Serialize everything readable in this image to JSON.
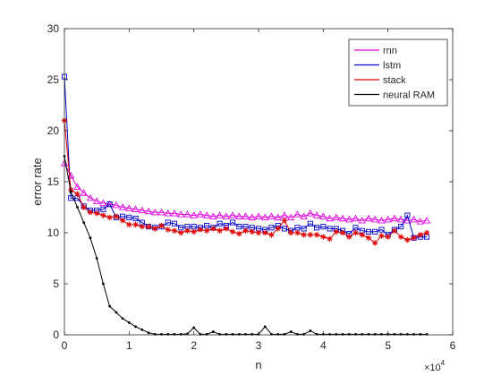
{
  "chart_data": {
    "type": "line",
    "xlabel": "n",
    "ylabel": "error rate",
    "x_exponent_label": "×10",
    "x_exponent_power": "4",
    "xlim": [
      0,
      6
    ],
    "ylim": [
      0,
      30
    ],
    "xticks": [
      0,
      1,
      2,
      3,
      4,
      5,
      6
    ],
    "yticks": [
      0,
      5,
      10,
      15,
      20,
      25,
      30
    ],
    "xtick_labels": [
      "0",
      "1",
      "2",
      "3",
      "4",
      "5",
      "6"
    ],
    "ytick_labels": [
      "0",
      "5",
      "10",
      "15",
      "20",
      "25",
      "30"
    ],
    "legend_position": "top-right",
    "series": [
      {
        "name": "rnn",
        "color": "#e000e0",
        "marker": "triangle",
        "x": [
          0,
          0.1,
          0.2,
          0.3,
          0.4,
          0.5,
          0.6,
          0.7,
          0.8,
          0.9,
          1.0,
          1.1,
          1.2,
          1.3,
          1.4,
          1.5,
          1.6,
          1.7,
          1.8,
          1.9,
          2.0,
          2.1,
          2.2,
          2.3,
          2.4,
          2.5,
          2.6,
          2.7,
          2.8,
          2.9,
          3.0,
          3.1,
          3.2,
          3.3,
          3.4,
          3.5,
          3.6,
          3.7,
          3.8,
          3.9,
          4.0,
          4.1,
          4.2,
          4.3,
          4.4,
          4.5,
          4.6,
          4.7,
          4.8,
          4.9,
          5.0,
          5.1,
          5.2,
          5.3,
          5.4,
          5.5,
          5.6
        ],
        "y": [
          16.8,
          15.6,
          14.5,
          13.9,
          13.4,
          13.1,
          12.9,
          12.8,
          12.7,
          12.5,
          12.4,
          12.3,
          12.2,
          12.1,
          12.0,
          12.0,
          11.9,
          11.9,
          11.8,
          11.8,
          11.7,
          11.8,
          11.7,
          11.6,
          11.7,
          11.6,
          11.7,
          11.6,
          11.6,
          11.5,
          11.6,
          11.5,
          11.6,
          11.5,
          11.7,
          11.5,
          11.8,
          11.6,
          11.9,
          11.7,
          11.6,
          11.4,
          11.5,
          11.4,
          11.3,
          11.4,
          11.2,
          11.4,
          11.3,
          11.2,
          11.3,
          11.4,
          11.3,
          11.2,
          11.3,
          11.1,
          11.2
        ]
      },
      {
        "name": "lstm",
        "color": "#0000c8",
        "marker": "square",
        "x": [
          0,
          0.1,
          0.2,
          0.3,
          0.4,
          0.5,
          0.6,
          0.7,
          0.8,
          0.9,
          1.0,
          1.1,
          1.2,
          1.3,
          1.4,
          1.5,
          1.6,
          1.7,
          1.8,
          1.9,
          2.0,
          2.1,
          2.2,
          2.3,
          2.4,
          2.5,
          2.6,
          2.7,
          2.8,
          2.9,
          3.0,
          3.1,
          3.2,
          3.3,
          3.4,
          3.5,
          3.6,
          3.7,
          3.8,
          3.9,
          4.0,
          4.1,
          4.2,
          4.3,
          4.4,
          4.5,
          4.6,
          4.7,
          4.8,
          4.9,
          5.0,
          5.1,
          5.2,
          5.3,
          5.4,
          5.5,
          5.6
        ],
        "y": [
          25.3,
          13.4,
          13.4,
          12.6,
          12.2,
          12.2,
          12.3,
          12.8,
          11.5,
          11.6,
          11.5,
          11.4,
          11.0,
          10.6,
          10.5,
          10.6,
          11.0,
          10.9,
          10.5,
          10.6,
          10.6,
          10.5,
          10.7,
          10.5,
          10.9,
          10.7,
          11.0,
          10.6,
          10.6,
          10.5,
          10.4,
          10.3,
          10.5,
          10.7,
          10.4,
          10.2,
          10.5,
          10.4,
          10.9,
          10.5,
          10.6,
          10.4,
          10.4,
          10.2,
          9.9,
          10.5,
          10.2,
          10.1,
          10.1,
          10.3,
          9.8,
          10.3,
          10.6,
          11.7,
          9.5,
          9.6,
          9.6
        ]
      },
      {
        "name": "stack",
        "color": "#e00000",
        "marker": "asterisk",
        "x": [
          0,
          0.1,
          0.2,
          0.3,
          0.4,
          0.5,
          0.6,
          0.7,
          0.8,
          0.9,
          1.0,
          1.1,
          1.2,
          1.3,
          1.4,
          1.5,
          1.6,
          1.7,
          1.8,
          1.9,
          2.0,
          2.1,
          2.2,
          2.3,
          2.4,
          2.5,
          2.6,
          2.7,
          2.8,
          2.9,
          3.0,
          3.1,
          3.2,
          3.3,
          3.4,
          3.5,
          3.6,
          3.7,
          3.8,
          3.9,
          4.0,
          4.1,
          4.2,
          4.3,
          4.4,
          4.5,
          4.6,
          4.7,
          4.8,
          4.9,
          5.0,
          5.1,
          5.2,
          5.3,
          5.4,
          5.5,
          5.6
        ],
        "y": [
          21.0,
          14.2,
          13.8,
          12.5,
          12.0,
          11.9,
          11.7,
          11.5,
          11.6,
          11.2,
          10.8,
          10.8,
          10.6,
          10.6,
          10.4,
          10.7,
          10.3,
          10.2,
          10.0,
          10.2,
          10.1,
          10.3,
          10.2,
          10.4,
          10.2,
          10.4,
          10.1,
          9.9,
          10.2,
          10.1,
          10.0,
          10.0,
          9.8,
          10.4,
          11.2,
          10.0,
          10.0,
          9.8,
          9.8,
          9.8,
          9.6,
          9.4,
          10.1,
          10.0,
          9.6,
          10.0,
          9.8,
          9.5,
          9.0,
          9.7,
          9.6,
          10.2,
          9.6,
          9.3,
          9.5,
          9.8,
          10.0
        ]
      },
      {
        "name": "neural RAM",
        "color": "#000000",
        "marker": "dot",
        "x": [
          0,
          0.1,
          0.2,
          0.3,
          0.4,
          0.5,
          0.6,
          0.7,
          0.8,
          0.9,
          1.0,
          1.1,
          1.2,
          1.3,
          1.4,
          1.5,
          1.6,
          1.7,
          1.8,
          1.9,
          2.0,
          2.1,
          2.2,
          2.3,
          2.4,
          2.5,
          2.6,
          2.7,
          2.8,
          2.9,
          3.0,
          3.1,
          3.2,
          3.3,
          3.4,
          3.5,
          3.6,
          3.7,
          3.8,
          3.9,
          4.0,
          4.1,
          4.2,
          4.3,
          4.4,
          4.5,
          4.6,
          4.7,
          4.8,
          4.9,
          5.0,
          5.1,
          5.2,
          5.3,
          5.4,
          5.5,
          5.6
        ],
        "y": [
          17.5,
          14.0,
          12.5,
          11.0,
          9.5,
          7.5,
          5.0,
          2.8,
          2.2,
          1.6,
          1.2,
          0.8,
          0.5,
          0.2,
          0.05,
          0.05,
          0.05,
          0.05,
          0.05,
          0.1,
          0.7,
          0.05,
          0.05,
          0.3,
          0.05,
          0.05,
          0.05,
          0.05,
          0.05,
          0.05,
          0.05,
          0.8,
          0.05,
          0.05,
          0.05,
          0.3,
          0.05,
          0.05,
          0.4,
          0.05,
          0.05,
          0.05,
          0.05,
          0.05,
          0.05,
          0.05,
          0.05,
          0.05,
          0.05,
          0.05,
          0.05,
          0.05,
          0.05,
          0.05,
          0.05,
          0.05,
          0.05
        ]
      }
    ]
  }
}
